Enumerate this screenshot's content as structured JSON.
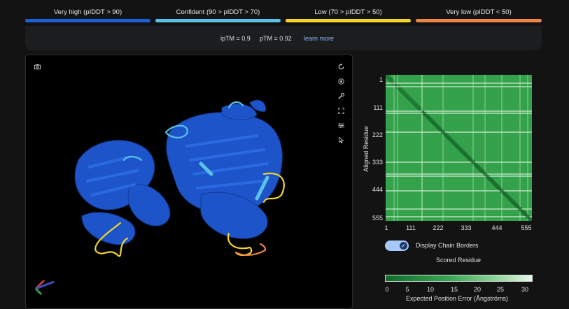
{
  "legend": [
    {
      "label": "Very high (pIDDT > 90)",
      "color": "#1a5fd8"
    },
    {
      "label": "Confident (90 > pIDDT > 70)",
      "color": "#5bc2e7"
    },
    {
      "label": "Low (70 > pIDDT > 50)",
      "color": "#f3d52c"
    },
    {
      "label": "Very low (pIDDT < 50)",
      "color": "#ee8643"
    }
  ],
  "metrics": {
    "iptm": "ipTM = 0.9",
    "ptm": "pTM = 0.92",
    "learn_more": "learn more"
  },
  "viewer": {
    "left_icon": "camera-icon",
    "toolbar_icons": [
      "reset-rotation-icon",
      "center-icon",
      "measure-icon",
      "fullscreen-icon",
      "settings-icon",
      "select-cursor-icon"
    ]
  },
  "pae": {
    "y_axis_title": "Aligned Residue",
    "x_axis_title": "Scored Residue",
    "y_ticks": [
      "1",
      "111",
      "222",
      "333",
      "444",
      "555"
    ],
    "x_ticks": [
      "1",
      "111",
      "222",
      "333",
      "444",
      "555"
    ],
    "toggle_label": "Display Chain Borders",
    "toggle_on": true,
    "colorbar_ticks": [
      "0",
      "5",
      "10",
      "15",
      "20",
      "25",
      "30"
    ],
    "colorbar_title": "Expected Position Error (Ångströms)",
    "colors": {
      "low": "#0f6b2c",
      "mid": "#2f9a45",
      "high": "#e9f7ec"
    }
  }
}
